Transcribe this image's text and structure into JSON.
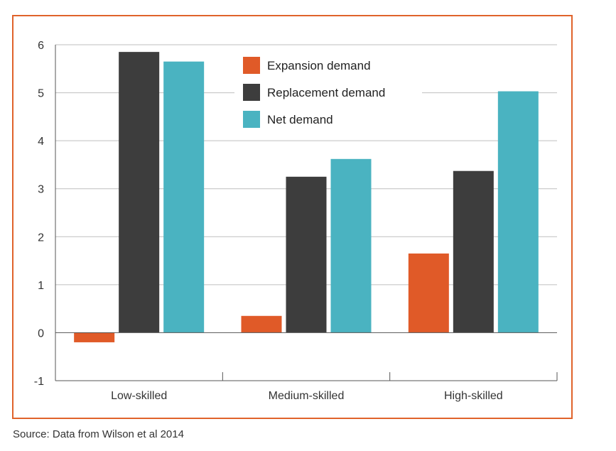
{
  "chart_data": {
    "type": "bar",
    "title": "",
    "xlabel": "",
    "ylabel": "",
    "categories": [
      "Low-skilled",
      "Medium-skilled",
      "High-skilled"
    ],
    "series": [
      {
        "name": "Expansion demand",
        "color": "#e05a28",
        "values": [
          -0.2,
          0.35,
          1.65
        ]
      },
      {
        "name": "Replacement demand",
        "color": "#3d3d3d",
        "values": [
          5.85,
          3.25,
          3.37
        ]
      },
      {
        "name": "Net demand",
        "color": "#4ab3c1",
        "values": [
          5.65,
          3.62,
          5.03
        ]
      }
    ],
    "ylim": [
      -1,
      6
    ],
    "yticks": [
      -1,
      0,
      1,
      2,
      3,
      4,
      5,
      6
    ],
    "grid": true,
    "legend_position": "top-center"
  },
  "source_note": "Source: Data from Wilson et al 2014",
  "colors": {
    "frame_border": "#e0632b",
    "gridline": "#bfbfbf",
    "axis": "#555555"
  }
}
